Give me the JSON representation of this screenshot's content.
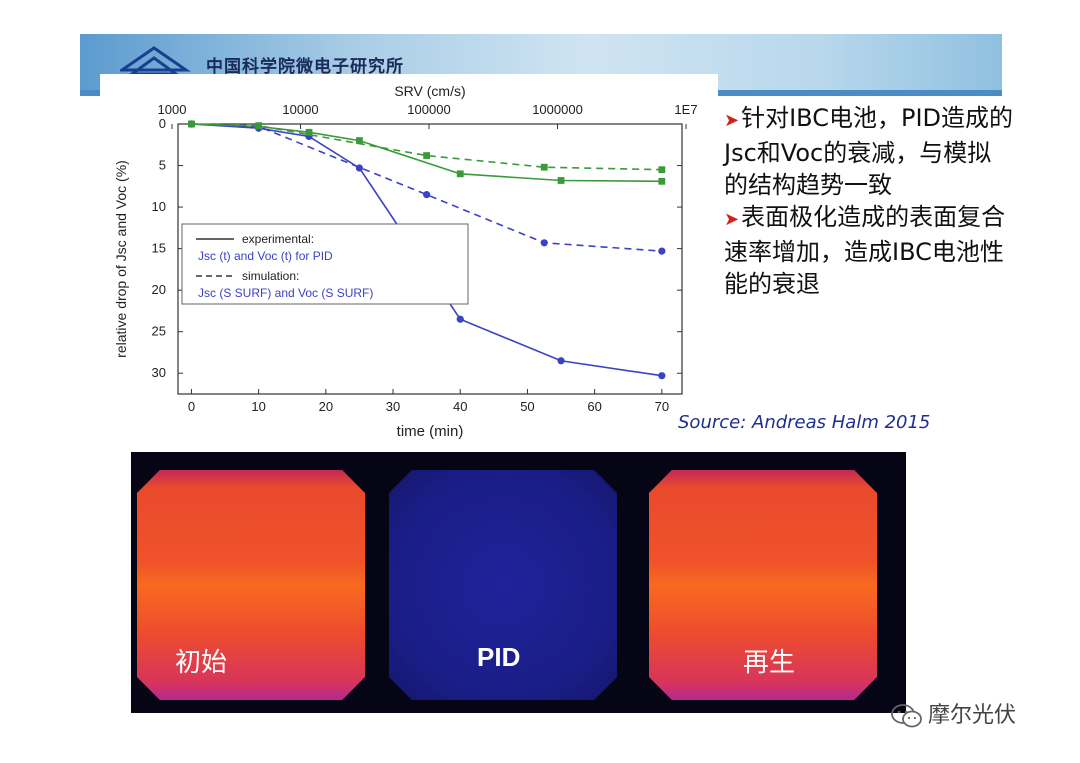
{
  "header": {
    "institute": "中国科学院微电子研究所",
    "band_color": "#7fb4dd"
  },
  "chart_data": {
    "type": "line",
    "xlabel": "time (min)",
    "ylabel": "relative drop of Jsc and Voc (%)",
    "top_axis_label": "SRV (cm/s)",
    "top_ticks": [
      "1000",
      "10000",
      "100000",
      "1000000",
      "1E7"
    ],
    "x_ticks": [
      0,
      10,
      20,
      30,
      40,
      50,
      60,
      70
    ],
    "y_ticks": [
      0,
      5,
      10,
      15,
      20,
      25,
      30
    ],
    "xlim": [
      -2,
      73
    ],
    "ylim": [
      0,
      32.5
    ],
    "y_inverted": true,
    "grid": false,
    "legend": {
      "placement": "center-left",
      "line1": "experimental:",
      "line2": "Jsc (t) and Voc (t) for PID",
      "line3": "simulation:",
      "line4": "Jsc (S SURF) and Voc (S SURF)"
    },
    "series": [
      {
        "color": "#3b42c4",
        "style": "solid",
        "marker": "circle",
        "x": [
          0,
          10,
          17.5,
          25,
          40,
          55,
          70
        ],
        "y": [
          0,
          0.5,
          1.5,
          5.3,
          23.5,
          28.5,
          30.3
        ]
      },
      {
        "color": "#3a9a3a",
        "style": "solid",
        "marker": "square",
        "x": [
          0,
          10,
          17.5,
          25,
          40,
          55,
          70
        ],
        "y": [
          0,
          0.3,
          1.0,
          2.0,
          6.0,
          6.8,
          6.9
        ]
      },
      {
        "color": "#3b42c4",
        "style": "dashed",
        "marker": "circle",
        "x": [
          0,
          10,
          35,
          52.5,
          70
        ],
        "y": [
          0,
          0.3,
          8.5,
          14.3,
          15.3
        ]
      },
      {
        "color": "#3a9a3a",
        "style": "dashed",
        "marker": "square",
        "x": [
          0,
          10,
          35,
          52.5,
          70
        ],
        "y": [
          0,
          0.2,
          3.8,
          5.2,
          5.5
        ]
      }
    ]
  },
  "notes": {
    "bullet1": "针对IBC电池，PID造成的Jsc和Voc的衰减，与模拟的结构趋势一致",
    "bullet2": "表面极化造成的表面复合速率增加，造成IBC电池性能的衰退",
    "arrow_color": "#d62020"
  },
  "source": "Source: Andreas Halm 2015",
  "el_images": {
    "labels": [
      "初始",
      "PID",
      "再生"
    ]
  },
  "watermark": "摩尔光伏"
}
